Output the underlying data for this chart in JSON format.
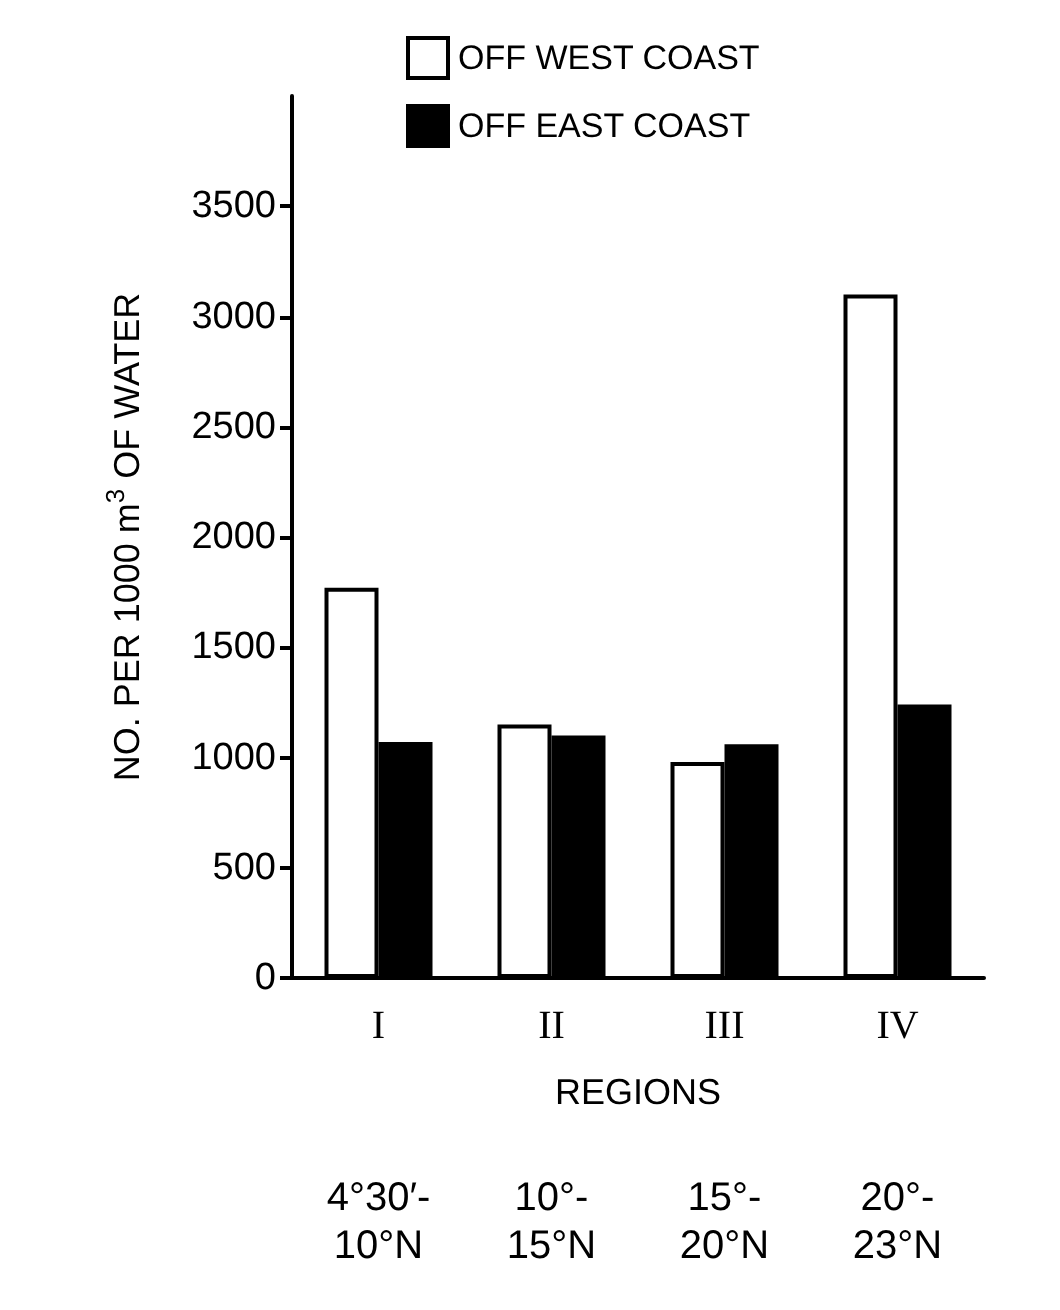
{
  "chart_data": {
    "type": "bar",
    "xlabel": "REGIONS",
    "ylabel": "NO. PER 1000 m$^{3}$ OF WATER",
    "categories": [
      "I",
      "II",
      "III",
      "IV"
    ],
    "series": [
      {
        "name": "OFF WEST COAST",
        "color": "#ffffff",
        "values": [
          1770,
          1150,
          980,
          3100
        ]
      },
      {
        "name": "OFF EAST COAST",
        "color": "#000000",
        "values": [
          1070,
          1100,
          1060,
          1240
        ]
      }
    ],
    "ylim": [
      0,
      4000
    ],
    "yticks": [
      0,
      500,
      1000,
      1500,
      2000,
      2500,
      3000,
      3500
    ],
    "grid": false,
    "legend": "top",
    "annotations": [
      "4°30′-\n10°N",
      "10°-\n15°N",
      "15°-\n20°N",
      "20°-\n23°N"
    ]
  }
}
